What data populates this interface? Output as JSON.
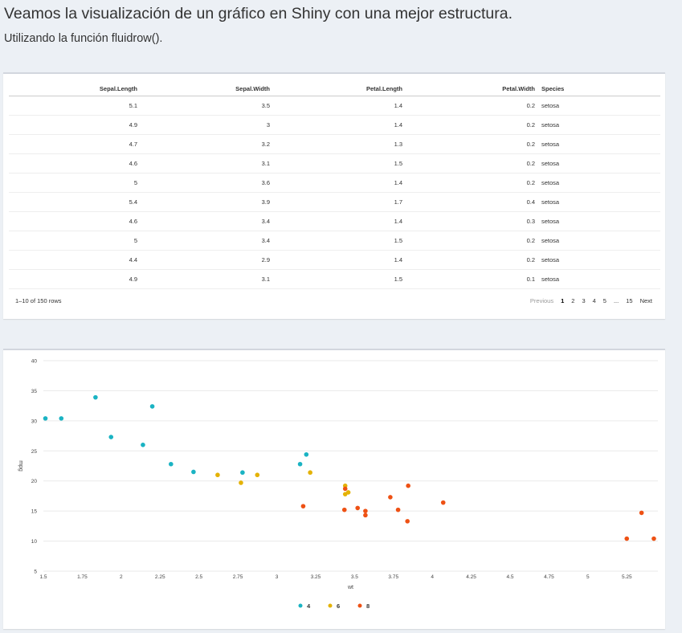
{
  "page": {
    "title": "Veamos la visualización de un gráfico en Shiny con una mejor estructura.",
    "subtitle": "Utilizando la función fluidrow()."
  },
  "table": {
    "headers": [
      "Sepal.Length",
      "Sepal.Width",
      "Petal.Length",
      "Petal.Width",
      "Species"
    ],
    "rows": [
      [
        "5.1",
        "3.5",
        "1.4",
        "0.2",
        "setosa"
      ],
      [
        "4.9",
        "3",
        "1.4",
        "0.2",
        "setosa"
      ],
      [
        "4.7",
        "3.2",
        "1.3",
        "0.2",
        "setosa"
      ],
      [
        "4.6",
        "3.1",
        "1.5",
        "0.2",
        "setosa"
      ],
      [
        "5",
        "3.6",
        "1.4",
        "0.2",
        "setosa"
      ],
      [
        "5.4",
        "3.9",
        "1.7",
        "0.4",
        "setosa"
      ],
      [
        "4.6",
        "3.4",
        "1.4",
        "0.3",
        "setosa"
      ],
      [
        "5",
        "3.4",
        "1.5",
        "0.2",
        "setosa"
      ],
      [
        "4.4",
        "2.9",
        "1.4",
        "0.2",
        "setosa"
      ],
      [
        "4.9",
        "3.1",
        "1.5",
        "0.1",
        "setosa"
      ]
    ],
    "info": "1–10 of 150 rows",
    "pagination": {
      "previous": "Previous",
      "pages": [
        "1",
        "2",
        "3",
        "4",
        "5",
        "...",
        "15"
      ],
      "current": "1",
      "next": "Next"
    }
  },
  "chart_data": {
    "type": "scatter",
    "title": "",
    "xlabel": "wt",
    "ylabel": "mpg",
    "xlim": [
      1.5,
      5.45
    ],
    "ylim": [
      5,
      40
    ],
    "x_ticks": [
      "1.5",
      "1.75",
      "2",
      "2.25",
      "2.5",
      "2.75",
      "3",
      "3.25",
      "3.5",
      "3.75",
      "4",
      "4.25",
      "4.5",
      "4.75",
      "5",
      "5.25"
    ],
    "y_ticks": [
      "5",
      "10",
      "15",
      "20",
      "25",
      "30",
      "35",
      "40"
    ],
    "grid": true,
    "legend_position": "bottom",
    "series": [
      {
        "name": "4",
        "color": "#1ab3c3",
        "points": [
          [
            2.32,
            22.8
          ],
          [
            2.465,
            21.5
          ],
          [
            2.2,
            32.4
          ],
          [
            1.615,
            30.4
          ],
          [
            1.835,
            33.9
          ],
          [
            1.935,
            27.3
          ],
          [
            2.14,
            26.0
          ],
          [
            1.513,
            30.4
          ],
          [
            2.78,
            21.4
          ],
          [
            3.19,
            24.4
          ],
          [
            3.15,
            22.8
          ]
        ]
      },
      {
        "name": "6",
        "color": "#e4b205",
        "points": [
          [
            2.62,
            21.0
          ],
          [
            2.875,
            21.0
          ],
          [
            3.215,
            21.4
          ],
          [
            3.44,
            19.2
          ],
          [
            3.44,
            17.8
          ],
          [
            3.46,
            18.1
          ],
          [
            2.77,
            19.7
          ]
        ]
      },
      {
        "name": "8",
        "color": "#ee5114",
        "points": [
          [
            3.44,
            18.7
          ],
          [
            3.57,
            14.3
          ],
          [
            4.07,
            16.4
          ],
          [
            3.73,
            17.3
          ],
          [
            3.78,
            15.2
          ],
          [
            5.25,
            10.4
          ],
          [
            5.424,
            10.4
          ],
          [
            5.345,
            14.7
          ],
          [
            3.52,
            15.5
          ],
          [
            3.435,
            15.2
          ],
          [
            3.84,
            13.3
          ],
          [
            3.845,
            19.2
          ],
          [
            3.17,
            15.8
          ],
          [
            3.57,
            15.0
          ]
        ]
      }
    ]
  }
}
